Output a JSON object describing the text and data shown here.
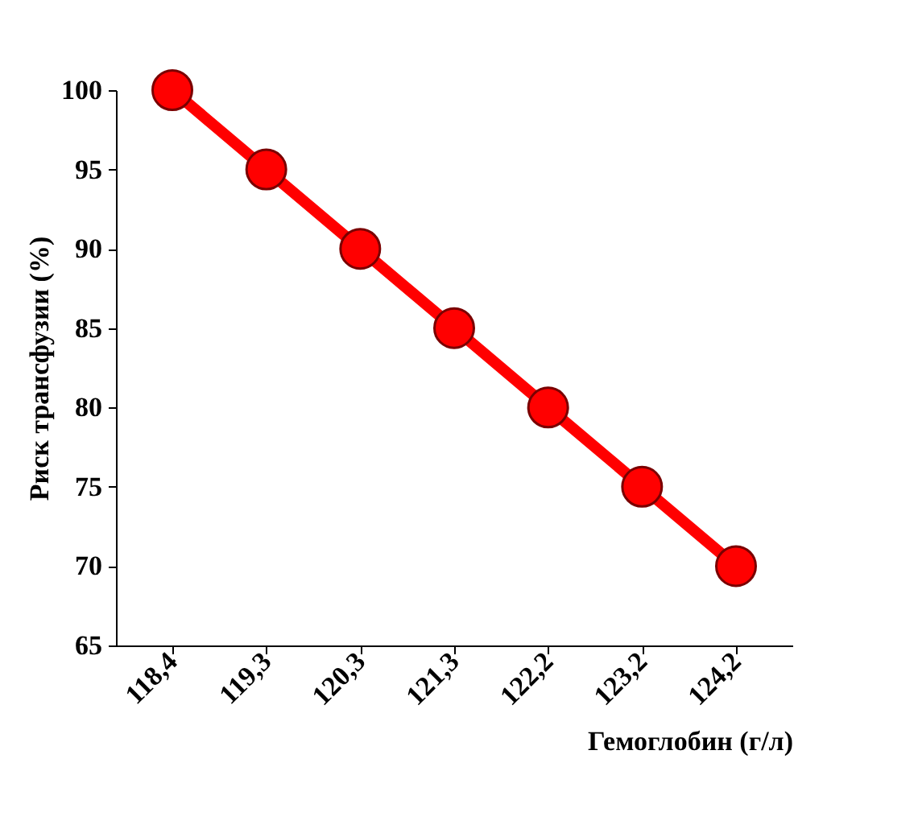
{
  "chart_data": {
    "type": "line",
    "xlabel": "Гемоглобин (г/л)",
    "ylabel": "Риск трансфузии (%)",
    "categories": [
      "118,4",
      "119,3",
      "120,3",
      "121,3",
      "122,2",
      "123,2",
      "124,2"
    ],
    "series": [
      {
        "color": "#ff0000",
        "values": [
          100,
          95,
          90,
          85,
          80,
          75,
          70
        ]
      }
    ],
    "ylim": [
      65,
      100
    ],
    "yticks": [
      65,
      70,
      75,
      80,
      85,
      90,
      95,
      100
    ],
    "grid": false,
    "legend": false,
    "marker": "circle",
    "line_style": "solid"
  }
}
